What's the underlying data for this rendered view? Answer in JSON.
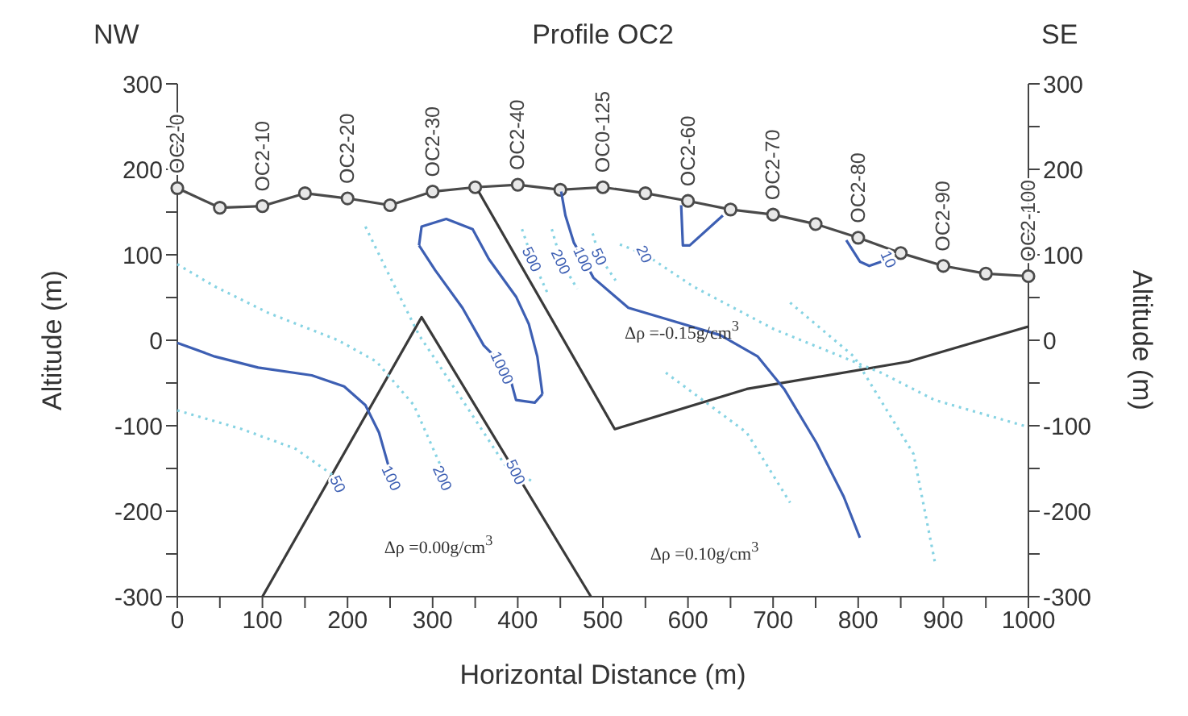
{
  "chart_data": {
    "type": "line",
    "title": "Profile OC2",
    "xlabel": "Horizontal Distance (m)",
    "ylabel": "Altitude (m)",
    "y2label": "Altitude (m)",
    "xlim": [
      0,
      1000
    ],
    "xticks": [
      0,
      {
        "value": 50,
        "label": null
      },
      100,
      {
        "value": 150,
        "label": null
      },
      200,
      {
        "value": 250,
        "label": null
      },
      300,
      {
        "value": 350,
        "label": null
      },
      400,
      {
        "value": 450,
        "label": null
      },
      500,
      {
        "value": 550,
        "label": null
      },
      600,
      {
        "value": 650,
        "label": null
      },
      700,
      {
        "value": 750,
        "label": null
      },
      800,
      {
        "value": 850,
        "label": null
      },
      900,
      {
        "value": 950,
        "label": null
      },
      1000
    ],
    "ylim": [
      -300,
      300
    ],
    "yticks": [
      -300,
      {
        "value": -250,
        "label": null
      },
      -200,
      {
        "value": -150,
        "label": null
      },
      -100,
      {
        "value": -50,
        "label": null
      },
      0,
      {
        "value": 50,
        "label": null
      },
      100,
      {
        "value": 150,
        "label": null
      },
      200,
      {
        "value": 250,
        "label": null
      },
      300
    ],
    "y2lim": [
      -300,
      300
    ],
    "y2ticks": [
      -300,
      {
        "value": -250,
        "label": null
      },
      -200,
      {
        "value": -150,
        "label": null
      },
      -100,
      {
        "value": -50,
        "label": null
      },
      0,
      {
        "value": 50,
        "label": null
      },
      100,
      {
        "value": 150,
        "label": null
      },
      200,
      {
        "value": 250,
        "label": null
      },
      300
    ],
    "grid": false,
    "series": [
      {
        "color": "#4a4a4a",
        "marker": "circle",
        "x": [
          0,
          50,
          100,
          150,
          200,
          250,
          300,
          350,
          400,
          450,
          500,
          550,
          600,
          650,
          700,
          750,
          800,
          850,
          900,
          950,
          1000
        ],
        "values": [
          178,
          155,
          157,
          172,
          166,
          158,
          174,
          179,
          182,
          176,
          179,
          172,
          163,
          153,
          147,
          136,
          120,
          102,
          87,
          78,
          75
        ],
        "value_labels": [
          "OC2-0",
          null,
          "OC2-10",
          null,
          "OC2-20",
          null,
          "OC2-30",
          null,
          "OC2-40",
          null,
          "OC0-125",
          null,
          "OC2-60",
          null,
          "OC2-70",
          null,
          "OC2-80",
          null,
          "OC2-90",
          null,
          "OC2-100"
        ]
      },
      {
        "color": "#3a3a3a",
        "x": [
          100,
          287,
          486
        ],
        "values": [
          -300,
          27,
          -300
        ]
      },
      {
        "color": "#3a3a3a",
        "x": [
          354,
          514,
          669,
          859,
          1000
        ],
        "values": [
          174,
          -104,
          -57,
          -25,
          16
        ]
      },
      {
        "color": "#3d5fb3",
        "x": [
          0,
          44,
          95,
          158,
          196,
          221,
          237,
          245,
          252
        ],
        "values": [
          -3,
          -19,
          -32,
          -41,
          -54,
          -76,
          -108,
          -136,
          -161
        ]
      },
      {
        "color": "#3d5fb3",
        "x": [
          284,
          303,
          335,
          360,
          373,
          382,
          391,
          398,
          420,
          429
        ],
        "values": [
          111,
          82,
          38,
          -6,
          -19,
          -32,
          -44,
          -70,
          -73,
          -63
        ]
      },
      {
        "color": "#3d5fb3",
        "x": [
          284,
          287,
          316,
          347,
          366,
          398,
          413,
          423,
          429
        ],
        "values": [
          111,
          133,
          142,
          130,
          95,
          51,
          19,
          -19,
          -63
        ]
      },
      {
        "color": "#3d5fb3",
        "x": [
          451,
          456,
          466,
          477,
          489,
          530,
          574,
          638,
          682,
          713,
          751,
          783,
          802
        ],
        "values": [
          174,
          146,
          114,
          95,
          73,
          38,
          25,
          6,
          -19,
          -57,
          -120,
          -183,
          -231
        ]
      },
      {
        "color": "#3d5fb3",
        "x": [
          592,
          594,
          602,
          641
        ],
        "values": [
          158,
          111,
          111,
          146
        ]
      },
      {
        "color": "#3d5fb3",
        "x": [
          786,
          802,
          813,
          836
        ],
        "values": [
          117,
          92,
          87,
          95
        ]
      },
      {
        "color": "#86d3e3",
        "line_style": "dotted",
        "x": [
          0,
          76,
          139,
          183,
          189
        ],
        "values": [
          -82,
          -104,
          -127,
          -158,
          -168
        ]
      },
      {
        "color": "#86d3e3",
        "line_style": "dotted",
        "x": [
          0,
          44,
          107,
          189,
          234,
          278,
          309,
          312
        ],
        "values": [
          89,
          63,
          32,
          0,
          -25,
          -76,
          -146,
          -161
        ]
      },
      {
        "color": "#86d3e3",
        "line_style": "dotted",
        "x": [
          221,
          246,
          284,
          335,
          385,
          398,
          417
        ],
        "values": [
          133,
          82,
          6,
          -70,
          -146,
          -154,
          -165
        ]
      },
      {
        "color": "#86d3e3",
        "line_style": "dotted",
        "x": [
          520,
          549,
          606,
          701,
          827,
          890,
          998
        ],
        "values": [
          112,
          101,
          63,
          13,
          -38,
          -70,
          -101
        ]
      },
      {
        "color": "#86d3e3",
        "line_style": "dotted",
        "x": [
          574,
          669,
          720
        ],
        "values": [
          -38,
          -108,
          -190
        ]
      },
      {
        "color": "#86d3e3",
        "line_style": "dotted",
        "x": [
          720,
          795,
          865,
          890
        ],
        "values": [
          44,
          -19,
          -133,
          -259
        ]
      },
      {
        "color": "#86d3e3",
        "line_style": "dotted",
        "x": [
          405,
          417,
          435
        ],
        "values": [
          130,
          95,
          55
        ]
      },
      {
        "color": "#86d3e3",
        "line_style": "dotted",
        "x": [
          440,
          451,
          470
        ],
        "values": [
          130,
          92,
          60
        ]
      },
      {
        "color": "#86d3e3",
        "line_style": "dotted",
        "x": [
          488,
          496,
          515
        ],
        "values": [
          125,
          98,
          70
        ]
      }
    ],
    "annotations": [
      "NW",
      "SE",
      "Δρ =0.00g/cm$^{3}$",
      "Δρ =0.10g/cm$^{3}$",
      "Δρ =-0.15g/cm$^{3}$",
      {
        "text": "1000",
        "x": 382,
        "y": -32
      },
      {
        "text": "100",
        "x": 252,
        "y": -161
      },
      {
        "text": "50",
        "x": 189,
        "y": -168
      },
      {
        "text": "200",
        "x": 312,
        "y": -161
      },
      {
        "text": "500",
        "x": 398,
        "y": -154
      },
      {
        "text": "500",
        "x": 417,
        "y": 95
      },
      {
        "text": "200",
        "x": 451,
        "y": 92
      },
      {
        "text": "100",
        "x": 477,
        "y": 95
      },
      {
        "text": "50",
        "x": 496,
        "y": 98
      },
      {
        "text": "20",
        "x": 549,
        "y": 101
      },
      {
        "text": "10",
        "x": 836,
        "y": 95
      }
    ]
  }
}
